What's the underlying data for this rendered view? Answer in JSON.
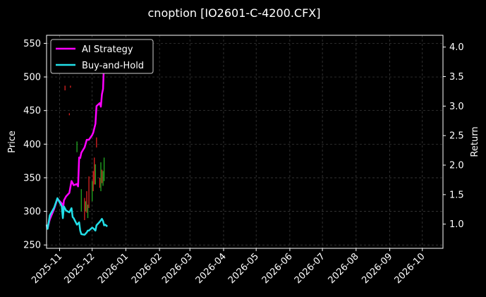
{
  "chart_data": {
    "type": "line",
    "title": "cnoption [IO2601-C-4200.CFX]",
    "ylabel_left": "Price",
    "ylabel_right": "Return",
    "xlabel": "",
    "x_ticks": [
      "2025-11",
      "2025-12",
      "2026-01",
      "2026-02",
      "2026-03",
      "2026-04",
      "2026-05",
      "2026-06",
      "2026-07",
      "2026-08",
      "2026-09",
      "2026-10"
    ],
    "x_tick_dates": [
      "2025-11-01",
      "2025-12-01",
      "2026-01-01",
      "2026-02-01",
      "2026-03-01",
      "2026-04-01",
      "2026-05-01",
      "2026-06-01",
      "2026-07-01",
      "2026-08-01",
      "2026-09-01",
      "2026-10-01"
    ],
    "xlim": [
      "2025-10-20",
      "2026-10-20"
    ],
    "ylim_left": [
      245,
      562
    ],
    "ylim_right": [
      0.59,
      4.2
    ],
    "y_ticks_left": [
      250,
      300,
      350,
      400,
      450,
      500,
      550
    ],
    "y_ticks_right": [
      "1.0",
      "1.5",
      "2.0",
      "2.5",
      "3.0",
      "3.5",
      "4.0"
    ],
    "grid": true,
    "legend_position": "top-left",
    "colors": {
      "background": "#000000",
      "ai": "#ff00ff",
      "bh": "#22e0e8",
      "up": "#22aa22",
      "down": "#dd2222",
      "grid": "#555555"
    },
    "series": [
      {
        "name": "AI Strategy",
        "axis": "right",
        "x": [
          "2025-10-20",
          "2025-10-21",
          "2025-10-23",
          "2025-10-27",
          "2025-10-30",
          "2025-11-03",
          "2025-11-04",
          "2025-11-05",
          "2025-11-07",
          "2025-11-10",
          "2025-11-12",
          "2025-11-14",
          "2025-11-17",
          "2025-11-18",
          "2025-11-19",
          "2025-11-20",
          "2025-11-21",
          "2025-11-24",
          "2025-11-26",
          "2025-11-28",
          "2025-12-01",
          "2025-12-02",
          "2025-12-04",
          "2025-12-05",
          "2025-12-08",
          "2025-12-09",
          "2025-12-10",
          "2025-12-11",
          "2025-12-12",
          "2025-12-13"
        ],
        "y": [
          0.96,
          0.93,
          1.08,
          1.26,
          1.43,
          1.35,
          1.23,
          1.4,
          1.47,
          1.53,
          1.73,
          1.66,
          1.68,
          1.64,
          2.13,
          2.12,
          2.21,
          2.3,
          2.43,
          2.43,
          2.51,
          2.55,
          2.7,
          3.0,
          3.05,
          2.99,
          3.2,
          3.29,
          3.8,
          3.97
        ]
      },
      {
        "name": "Buy-and-Hold",
        "axis": "right",
        "x": [
          "2025-10-20",
          "2025-10-21",
          "2025-10-23",
          "2025-10-27",
          "2025-10-30",
          "2025-11-03",
          "2025-11-04",
          "2025-11-05",
          "2025-11-07",
          "2025-11-10",
          "2025-11-12",
          "2025-11-13",
          "2025-11-14",
          "2025-11-17",
          "2025-11-19",
          "2025-11-20",
          "2025-11-21",
          "2025-11-24",
          "2025-11-26",
          "2025-11-27",
          "2025-11-28",
          "2025-12-01",
          "2025-12-02",
          "2025-12-04",
          "2025-12-05",
          "2025-12-08",
          "2025-12-10",
          "2025-12-11",
          "2025-12-12",
          "2025-12-13",
          "2025-12-15"
        ],
        "y": [
          0.99,
          0.92,
          1.15,
          1.28,
          1.44,
          1.3,
          1.1,
          1.3,
          1.23,
          1.2,
          1.27,
          1.12,
          1.1,
          0.99,
          1.03,
          0.89,
          0.83,
          0.82,
          0.86,
          0.89,
          0.89,
          0.94,
          0.93,
          0.89,
          0.98,
          1.04,
          1.09,
          1.05,
          0.98,
          0.99,
          0.96
        ]
      }
    ],
    "candles": [
      {
        "x": "2025-11-06",
        "low": 480,
        "high": 487,
        "dir": "down"
      },
      {
        "x": "2025-11-10",
        "low": 443,
        "high": 446,
        "dir": "down"
      },
      {
        "x": "2025-11-11",
        "low": 484,
        "high": 487,
        "dir": "down"
      },
      {
        "x": "2025-11-17",
        "low": 388,
        "high": 404,
        "dir": "up"
      },
      {
        "x": "2025-11-21",
        "low": 300,
        "high": 333,
        "dir": "up"
      },
      {
        "x": "2025-11-24",
        "low": 287,
        "high": 320,
        "dir": "down"
      },
      {
        "x": "2025-11-25",
        "low": 300,
        "high": 315,
        "dir": "up"
      },
      {
        "x": "2025-11-26",
        "low": 298,
        "high": 330,
        "dir": "down"
      },
      {
        "x": "2025-11-27",
        "low": 290,
        "high": 310,
        "dir": "up"
      },
      {
        "x": "2025-11-28",
        "low": 305,
        "high": 352,
        "dir": "down"
      },
      {
        "x": "2025-12-01",
        "low": 315,
        "high": 345,
        "dir": "up"
      },
      {
        "x": "2025-12-02",
        "low": 330,
        "high": 360,
        "dir": "down"
      },
      {
        "x": "2025-12-03",
        "low": 340,
        "high": 380,
        "dir": "down"
      },
      {
        "x": "2025-12-04",
        "low": 340,
        "high": 370,
        "dir": "up"
      },
      {
        "x": "2025-12-05",
        "low": 395,
        "high": 410,
        "dir": "down"
      },
      {
        "x": "2025-12-08",
        "low": 335,
        "high": 350,
        "dir": "down"
      },
      {
        "x": "2025-12-09",
        "low": 330,
        "high": 373,
        "dir": "up"
      },
      {
        "x": "2025-12-10",
        "low": 342,
        "high": 362,
        "dir": "down"
      },
      {
        "x": "2025-12-11",
        "low": 338,
        "high": 360,
        "dir": "up"
      },
      {
        "x": "2025-12-12",
        "low": 345,
        "high": 380,
        "dir": "up"
      }
    ]
  }
}
